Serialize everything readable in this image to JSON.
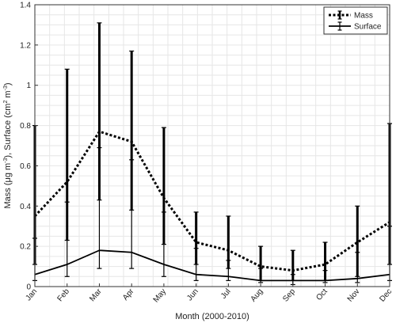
{
  "chart_data": {
    "type": "line",
    "title": "",
    "xlabel": "Month (2000-2010)",
    "ylabel_parts": [
      "Mass (",
      "μ",
      "g m",
      "-3",
      "), Surface (cm",
      "2",
      " m",
      "-3",
      ")"
    ],
    "categories": [
      "Jan",
      "Feb",
      "Mar",
      "Apr",
      "May",
      "Jun",
      "Jul",
      "Aug",
      "Sep",
      "Oct",
      "Nov",
      "Dec"
    ],
    "ylim": [
      0,
      1.4
    ],
    "yticks": [
      0,
      0.2,
      0.4,
      0.6,
      0.8,
      1,
      1.2,
      1.4
    ],
    "ytick_labels": [
      "0",
      "0.2",
      "0.4",
      "0.6",
      "0.8",
      "1",
      "1.2",
      "1.4"
    ],
    "grid": true,
    "legend_position": "top-right",
    "series": [
      {
        "name": "Mass",
        "style": "dotted",
        "values": [
          0.35,
          0.52,
          0.77,
          0.72,
          0.44,
          0.22,
          0.18,
          0.1,
          0.08,
          0.11,
          0.22,
          0.32
        ],
        "lower": [
          0.11,
          0.23,
          0.43,
          0.38,
          0.21,
          0.11,
          0.09,
          0.03,
          0.03,
          0.03,
          0.05,
          0.11
        ],
        "upper": [
          0.8,
          1.08,
          1.31,
          1.17,
          0.79,
          0.37,
          0.35,
          0.2,
          0.18,
          0.22,
          0.4,
          0.81
        ]
      },
      {
        "name": "Surface",
        "style": "solid",
        "values": [
          0.06,
          0.11,
          0.18,
          0.17,
          0.11,
          0.06,
          0.05,
          0.03,
          0.03,
          0.03,
          0.04,
          0.06
        ],
        "lower": [
          0.03,
          0.05,
          0.09,
          0.09,
          0.05,
          0.03,
          0.03,
          0.02,
          0.01,
          0.02,
          0.02,
          0.03
        ],
        "upper": [
          0.24,
          0.42,
          0.69,
          0.63,
          0.37,
          0.19,
          0.13,
          0.09,
          0.06,
          0.08,
          0.17,
          0.3
        ]
      }
    ]
  }
}
